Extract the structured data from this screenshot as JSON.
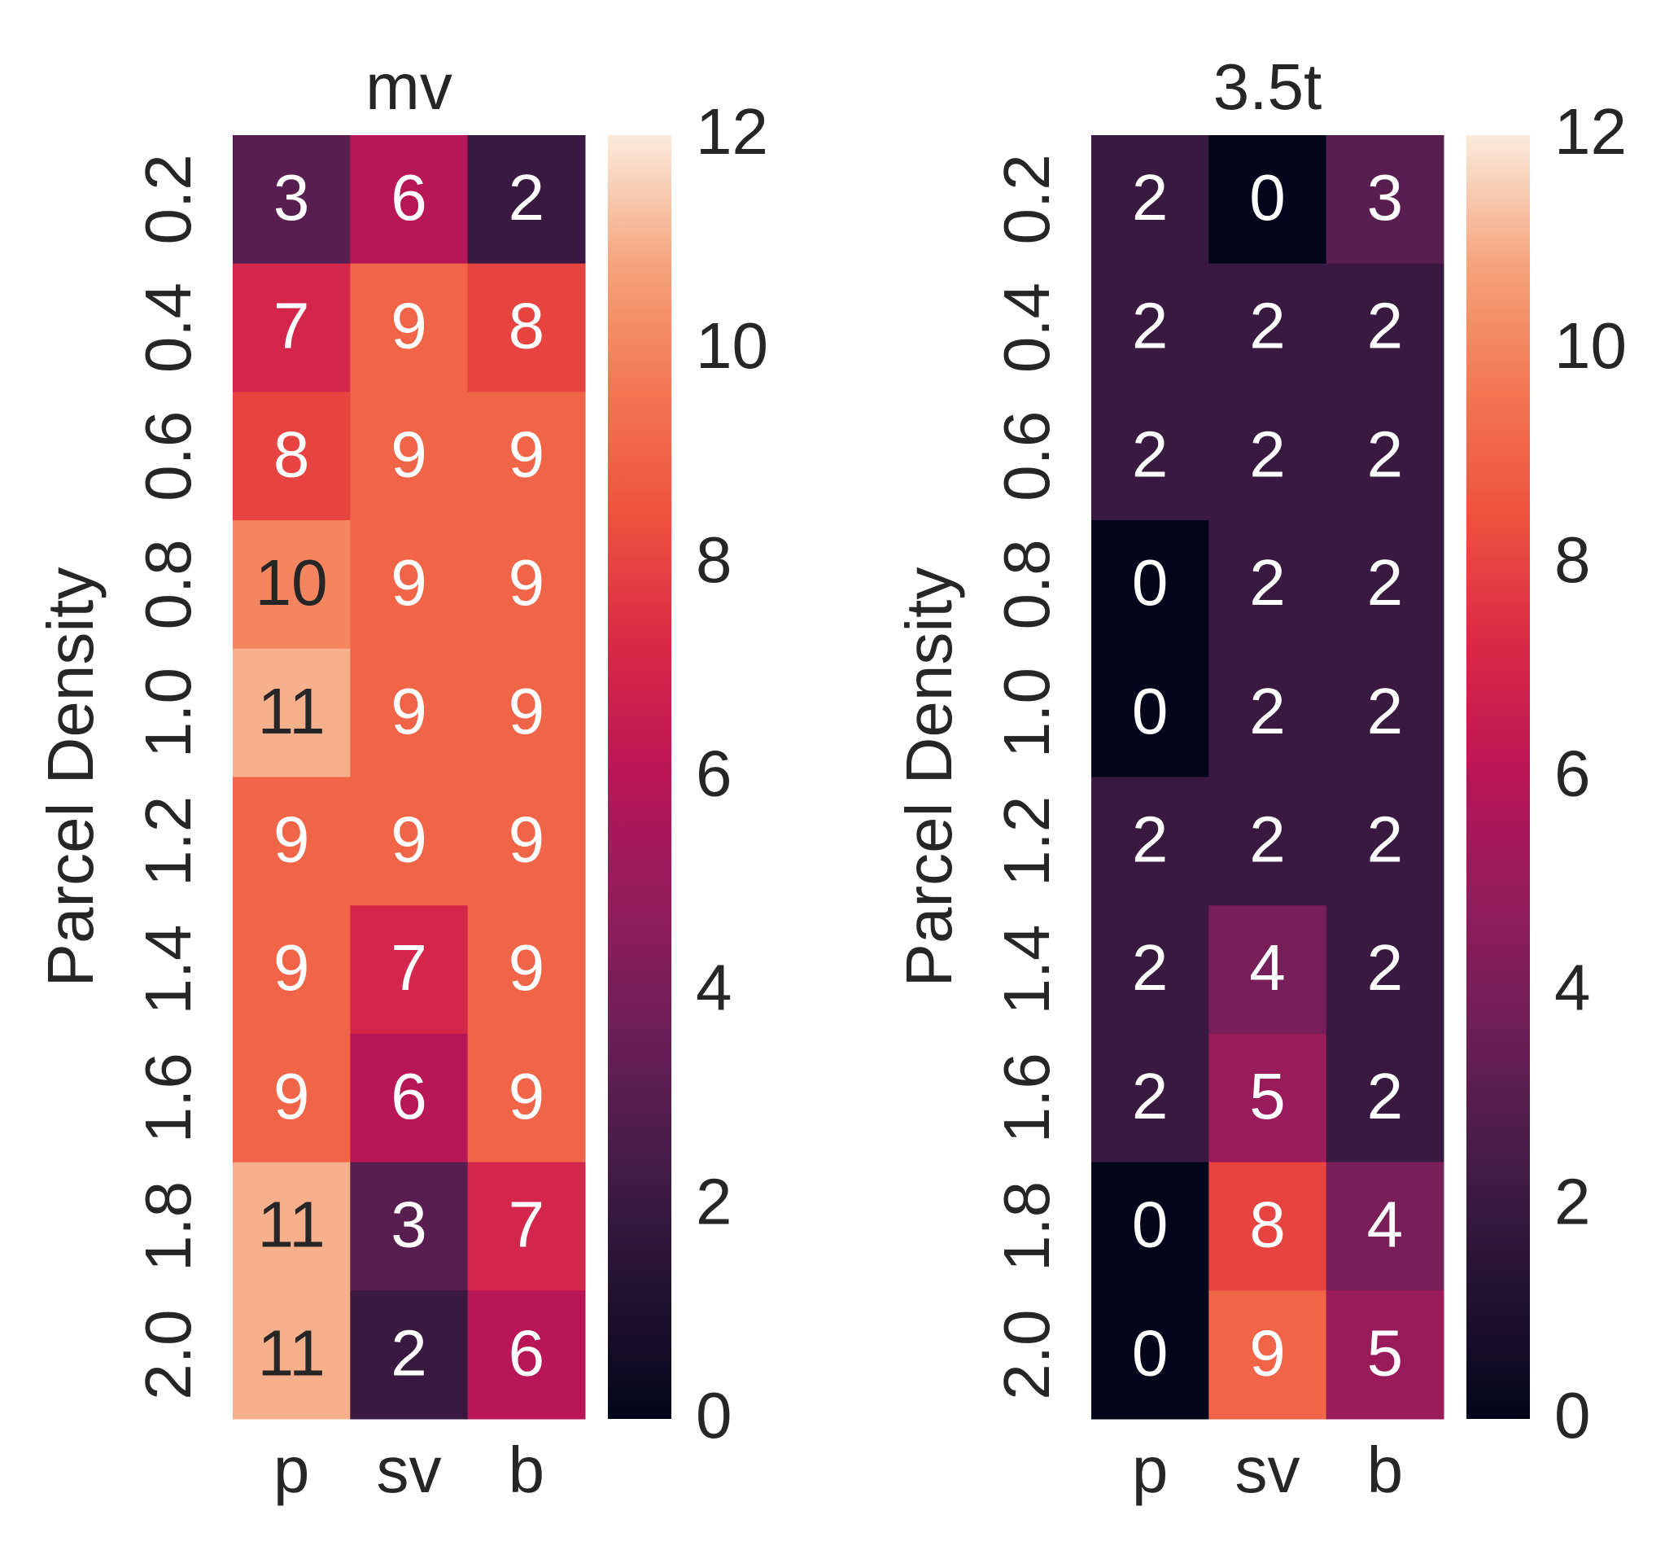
{
  "chart_data": [
    {
      "type": "heatmap",
      "title": "mv",
      "y_label": "Parcel Density",
      "x_categories": [
        "p",
        "sv",
        "b"
      ],
      "y_categories": [
        "0.2",
        "0.4",
        "0.6",
        "0.8",
        "1.0",
        "1.2",
        "1.4",
        "1.6",
        "1.8",
        "2.0"
      ],
      "values": [
        [
          3,
          6,
          2
        ],
        [
          7,
          9,
          8
        ],
        [
          8,
          9,
          9
        ],
        [
          10,
          9,
          9
        ],
        [
          11,
          9,
          9
        ],
        [
          9,
          9,
          9
        ],
        [
          9,
          7,
          9
        ],
        [
          9,
          6,
          9
        ],
        [
          11,
          3,
          7
        ],
        [
          11,
          2,
          6
        ]
      ],
      "colorbar_lim": [
        0,
        12
      ],
      "colorbar_ticks": [
        0,
        2,
        4,
        6,
        8,
        10,
        12
      ],
      "colorscale": [
        "#03051a",
        "#221331",
        "#451c47",
        "#6b1f56",
        "#921c5b",
        "#b91657",
        "#d92847",
        "#ed513e",
        "#f37651",
        "#f6a47c",
        "#faebdd"
      ]
    },
    {
      "type": "heatmap",
      "title": "3.5t",
      "y_label": "Parcel Density",
      "x_categories": [
        "p",
        "sv",
        "b"
      ],
      "y_categories": [
        "0.2",
        "0.4",
        "0.6",
        "0.8",
        "1.0",
        "1.2",
        "1.4",
        "1.6",
        "1.8",
        "2.0"
      ],
      "values": [
        [
          2,
          0,
          3
        ],
        [
          2,
          2,
          2
        ],
        [
          2,
          2,
          2
        ],
        [
          0,
          2,
          2
        ],
        [
          0,
          2,
          2
        ],
        [
          2,
          2,
          2
        ],
        [
          2,
          4,
          2
        ],
        [
          2,
          5,
          2
        ],
        [
          0,
          8,
          4
        ],
        [
          0,
          9,
          5
        ]
      ],
      "colorbar_lim": [
        0,
        12
      ],
      "colorbar_ticks": [
        0,
        2,
        4,
        6,
        8,
        10,
        12
      ],
      "colorscale": [
        "#03051a",
        "#221331",
        "#451c47",
        "#6b1f56",
        "#921c5b",
        "#b91657",
        "#d92847",
        "#ed513e",
        "#f37651",
        "#f6a47c",
        "#faebdd"
      ]
    }
  ]
}
